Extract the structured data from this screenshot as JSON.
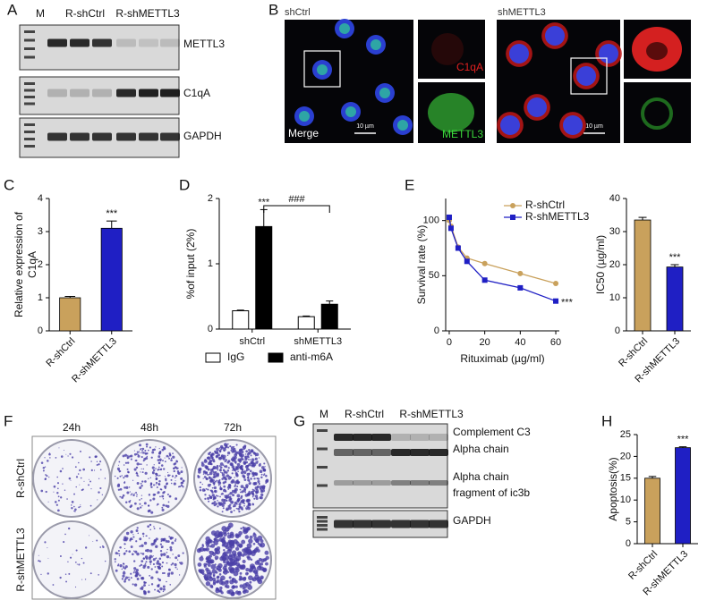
{
  "panel_labels": [
    "A",
    "B",
    "C",
    "D",
    "E",
    "F",
    "G",
    "H"
  ],
  "blot_a": {
    "lanes": [
      "M",
      "R-shCtrl",
      "R-shMETTL3"
    ],
    "bands": [
      "METTL3",
      "C1qA",
      "GAPDH"
    ]
  },
  "images_b": {
    "groups": [
      "shCtrl",
      "shMETTL3"
    ],
    "channels": [
      "C1qA",
      "METTL3",
      "Merge"
    ],
    "scale_bar": "10 µm"
  },
  "plates_f": {
    "times": [
      "24h",
      "48h",
      "72h"
    ],
    "rows": [
      "R-shCtrl",
      "R-shMETTL3"
    ]
  },
  "blot_g": {
    "lanes": [
      "M",
      "R-shCtrl",
      "R-shMETTL3"
    ],
    "bands": [
      "Complement C3",
      "Alpha chain",
      "Alpha chain",
      "fragment of ic3b",
      "GAPDH"
    ]
  },
  "chart_data": [
    {
      "type": "bar",
      "ylabel": [
        "Relative expression of",
        "C1qA"
      ],
      "categories": [
        "R-shCtrl",
        "R-shMETTL3"
      ],
      "values": [
        1,
        3.1
      ],
      "errors": [
        0.04,
        0.22
      ],
      "colors": [
        "#c9a15c",
        "#1f1fc4"
      ],
      "ylim": [
        0,
        4
      ],
      "yticks": [
        0,
        1,
        2,
        3,
        4
      ],
      "annotations": [
        "***"
      ]
    },
    {
      "type": "grouped_bar",
      "ylabel": "%of input (2%)",
      "categories": [
        "shCtrl",
        "shMETTL3"
      ],
      "series": [
        {
          "name": "IgG",
          "color": "#ffffff",
          "values": [
            0.28,
            0.19
          ],
          "errors": [
            0.01,
            0.01
          ]
        },
        {
          "name": "anti-m6A",
          "color": "#000000",
          "values": [
            1.57,
            0.38
          ],
          "errors": [
            0.26,
            0.05
          ]
        }
      ],
      "ylim": [
        0,
        2
      ],
      "yticks": [
        0,
        1,
        2
      ],
      "legend": "bottom",
      "annotations": [
        "***",
        "###"
      ]
    },
    {
      "type": "line",
      "xlabel": "Rituximab (µg/ml)",
      "ylabel": "Survival rate (%)",
      "x": [
        0,
        1,
        5,
        10,
        20,
        40,
        60
      ],
      "series": [
        {
          "name": "R-shCtrl",
          "color": "#c9a15c",
          "marker": "circle",
          "values": [
            100,
            95,
            76,
            66,
            61,
            52,
            43
          ]
        },
        {
          "name": "R-shMETTL3",
          "color": "#1f1fc4",
          "marker": "square",
          "values": [
            103,
            93,
            75,
            63,
            46,
            39,
            27
          ]
        }
      ],
      "xlim": [
        -2,
        62
      ],
      "xticks": [
        0,
        20,
        40,
        60
      ],
      "ylim": [
        0,
        120
      ],
      "yticks": [
        0,
        50,
        100
      ],
      "legend": "upper right",
      "annotations": [
        "***"
      ]
    },
    {
      "type": "bar",
      "ylabel": "IC50 (µg/ml)",
      "categories": [
        "R-shCtrl",
        "R-shMETTL3"
      ],
      "values": [
        33.5,
        19.3
      ],
      "errors": [
        0.8,
        0.7
      ],
      "colors": [
        "#c9a15c",
        "#1f1fc4"
      ],
      "ylim": [
        0,
        40
      ],
      "yticks": [
        0,
        10,
        20,
        30,
        40
      ],
      "annotations": [
        "***"
      ]
    },
    {
      "type": "bar",
      "ylabel": "Apoptosis(%)",
      "categories": [
        "R-shCtrl",
        "R-shMETTL3"
      ],
      "values": [
        15,
        22
      ],
      "errors": [
        0.4,
        0.2
      ],
      "colors": [
        "#c9a15c",
        "#1f1fc4"
      ],
      "ylim": [
        0,
        25
      ],
      "yticks": [
        0,
        5,
        10,
        15,
        20,
        25
      ],
      "annotations": [
        "***"
      ]
    }
  ]
}
